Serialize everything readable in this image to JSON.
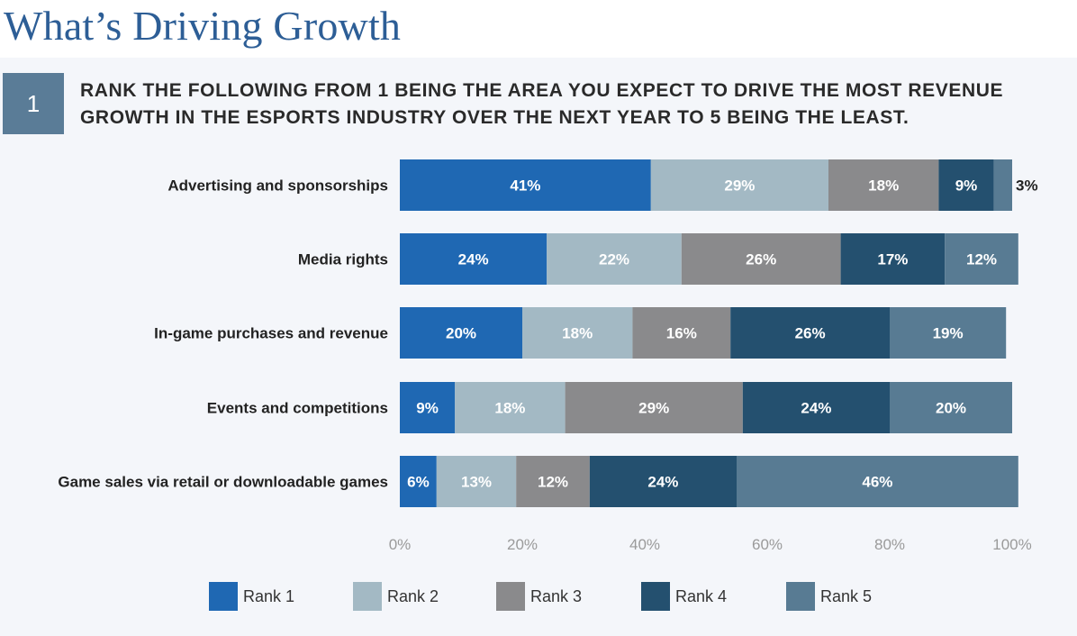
{
  "page": {
    "title": "What’s Driving Growth",
    "question_number": "1",
    "question": "RANK THE FOLLOWING FROM 1 BEING THE AREA YOU EXPECT TO DRIVE THE MOST REVENUE GROWTH IN THE ESPORTS INDUSTRY OVER THE NEXT YEAR TO 5 BEING THE LEAST."
  },
  "colors": {
    "Rank 1": "#1f68b3",
    "Rank 2": "#a3b9c4",
    "Rank 3": "#8a8a8c",
    "Rank 4": "#24506f",
    "Rank 5": "#587b93"
  },
  "chart_data": {
    "type": "bar",
    "orientation": "horizontal",
    "stacked": true,
    "categories": [
      "Advertising and sponsorships",
      "Media rights",
      "In-game purchases and revenue",
      "Events and competitions",
      "Game sales via retail or downloadable games"
    ],
    "series": [
      {
        "name": "Rank 1",
        "values": [
          41,
          24,
          20,
          9,
          6
        ]
      },
      {
        "name": "Rank 2",
        "values": [
          29,
          22,
          18,
          18,
          13
        ]
      },
      {
        "name": "Rank 3",
        "values": [
          18,
          26,
          16,
          29,
          12
        ]
      },
      {
        "name": "Rank 4",
        "values": [
          9,
          17,
          26,
          24,
          24
        ]
      },
      {
        "name": "Rank 5",
        "values": [
          3,
          12,
          19,
          20,
          46
        ]
      }
    ],
    "value_suffix": "%",
    "xlim": [
      0,
      100
    ],
    "xticks": [
      0,
      20,
      40,
      60,
      80,
      100
    ],
    "xtick_labels": [
      "0%",
      "20%",
      "40%",
      "60%",
      "80%",
      "100%"
    ],
    "grid": false,
    "legend": "bottom"
  }
}
